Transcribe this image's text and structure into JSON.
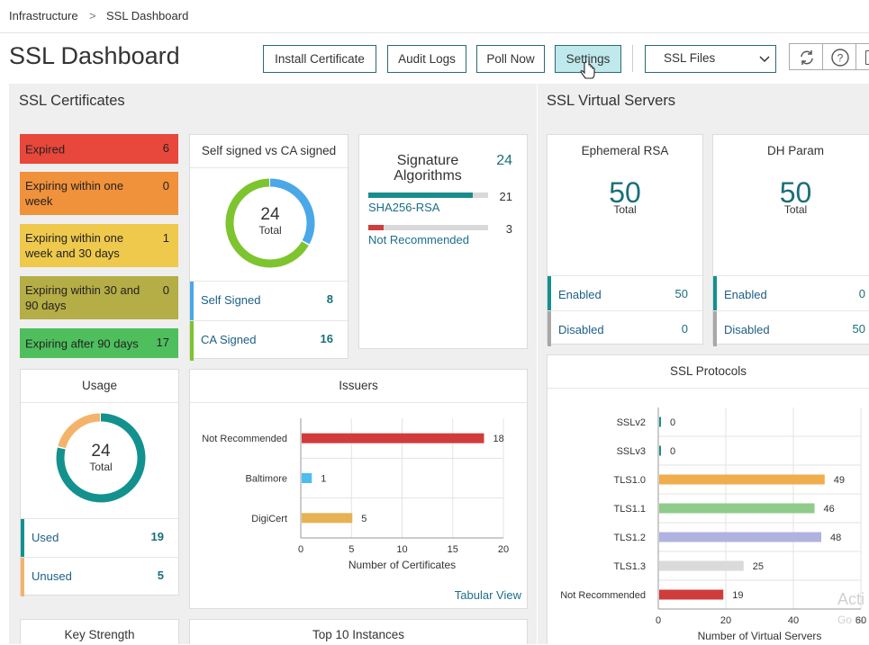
{
  "breadcrumb": {
    "root": "Infrastructure",
    "separator": ">",
    "current": "SSL Dashboard"
  },
  "page_title": "SSL Dashboard",
  "toolbar": {
    "install_label": "Install Certificate",
    "audit_label": "Audit Logs",
    "poll_label": "Poll Now",
    "settings_label": "Settings",
    "ssl_files_label": "SSL Files"
  },
  "sections": {
    "certificates": "SSL Certificates",
    "virtual_servers": "SSL Virtual Servers"
  },
  "expiry": [
    {
      "label": "Expired",
      "count": "6",
      "color": "#e8473b"
    },
    {
      "label": "Expiring within one week",
      "count": "0",
      "color": "#f0913b"
    },
    {
      "label": "Expiring within one week and 30 days",
      "count": "1",
      "color": "#efc94c"
    },
    {
      "label": "Expiring within 30 and 90 days",
      "count": "0",
      "color": "#b5ad45"
    },
    {
      "label": "Expiring after 90 days",
      "count": "17",
      "color": "#4fbf5e"
    }
  ],
  "self_vs_ca": {
    "title": "Self signed vs CA signed",
    "total": "24",
    "total_label": "Total",
    "items": [
      {
        "label": "Self Signed",
        "value": "8",
        "color": "#4aa8e8"
      },
      {
        "label": "CA Signed",
        "value": "16",
        "color": "#7dc42f"
      }
    ]
  },
  "signature": {
    "title": "Signature Algorithms",
    "total": "24",
    "items": [
      {
        "label": "SHA256-RSA",
        "value": "21",
        "color": "#1a8c8c"
      },
      {
        "label": "Not Recommended",
        "value": "3",
        "color": "#d03c3c"
      }
    ]
  },
  "usage": {
    "title": "Usage",
    "total": "24",
    "total_label": "Total",
    "items": [
      {
        "label": "Used",
        "value": "19",
        "color": "#13918f"
      },
      {
        "label": "Unused",
        "value": "5",
        "color": "#f4b36b"
      }
    ]
  },
  "issuers": {
    "title": "Issuers",
    "link": "Tabular View",
    "chart_data": {
      "type": "bar",
      "orientation": "horizontal",
      "categories": [
        "Not Recommended",
        "Baltimore",
        "DigiCert"
      ],
      "values": [
        18,
        1,
        5
      ],
      "colors": [
        "#d03c3c",
        "#4dbcef",
        "#e6b352"
      ],
      "xlabel": "Number of Certificates",
      "xlim": [
        0,
        20
      ],
      "xticks": [
        "0",
        "5",
        "10",
        "15",
        "20"
      ]
    }
  },
  "ephemeral": {
    "title": "Ephemeral RSA",
    "total": "50",
    "total_label": "Total",
    "items": [
      {
        "label": "Enabled",
        "value": "50",
        "color": "#13918f"
      },
      {
        "label": "Disabled",
        "value": "0",
        "color": "#a8a8a8"
      }
    ]
  },
  "dhparam": {
    "title": "DH Param",
    "total": "50",
    "total_label": "Total",
    "items": [
      {
        "label": "Enabled",
        "value": "0",
        "color": "#13918f"
      },
      {
        "label": "Disabled",
        "value": "50",
        "color": "#a8a8a8"
      }
    ]
  },
  "protocols": {
    "title": "SSL Protocols",
    "chart_data": {
      "type": "bar",
      "orientation": "horizontal",
      "categories": [
        "SSLv2",
        "SSLv3",
        "TLS1.0",
        "TLS1.1",
        "TLS1.2",
        "TLS1.3",
        "Not Recommended"
      ],
      "values": [
        0,
        0,
        49,
        46,
        48,
        25,
        19
      ],
      "colors": [
        "#13918f",
        "#13918f",
        "#f0ad4e",
        "#8fcb8a",
        "#b0b2e0",
        "#dadada",
        "#d03c3c"
      ],
      "xlabel": "Number of Virtual Servers",
      "xlim": [
        0,
        60
      ],
      "xticks": [
        "0",
        "20",
        "40",
        "60"
      ]
    }
  },
  "bottom_cards": {
    "key_strength": "Key Strength",
    "top_instances": "Top 10 Instances"
  },
  "watermark": {
    "line1": "Acti",
    "line2": "Go to"
  }
}
